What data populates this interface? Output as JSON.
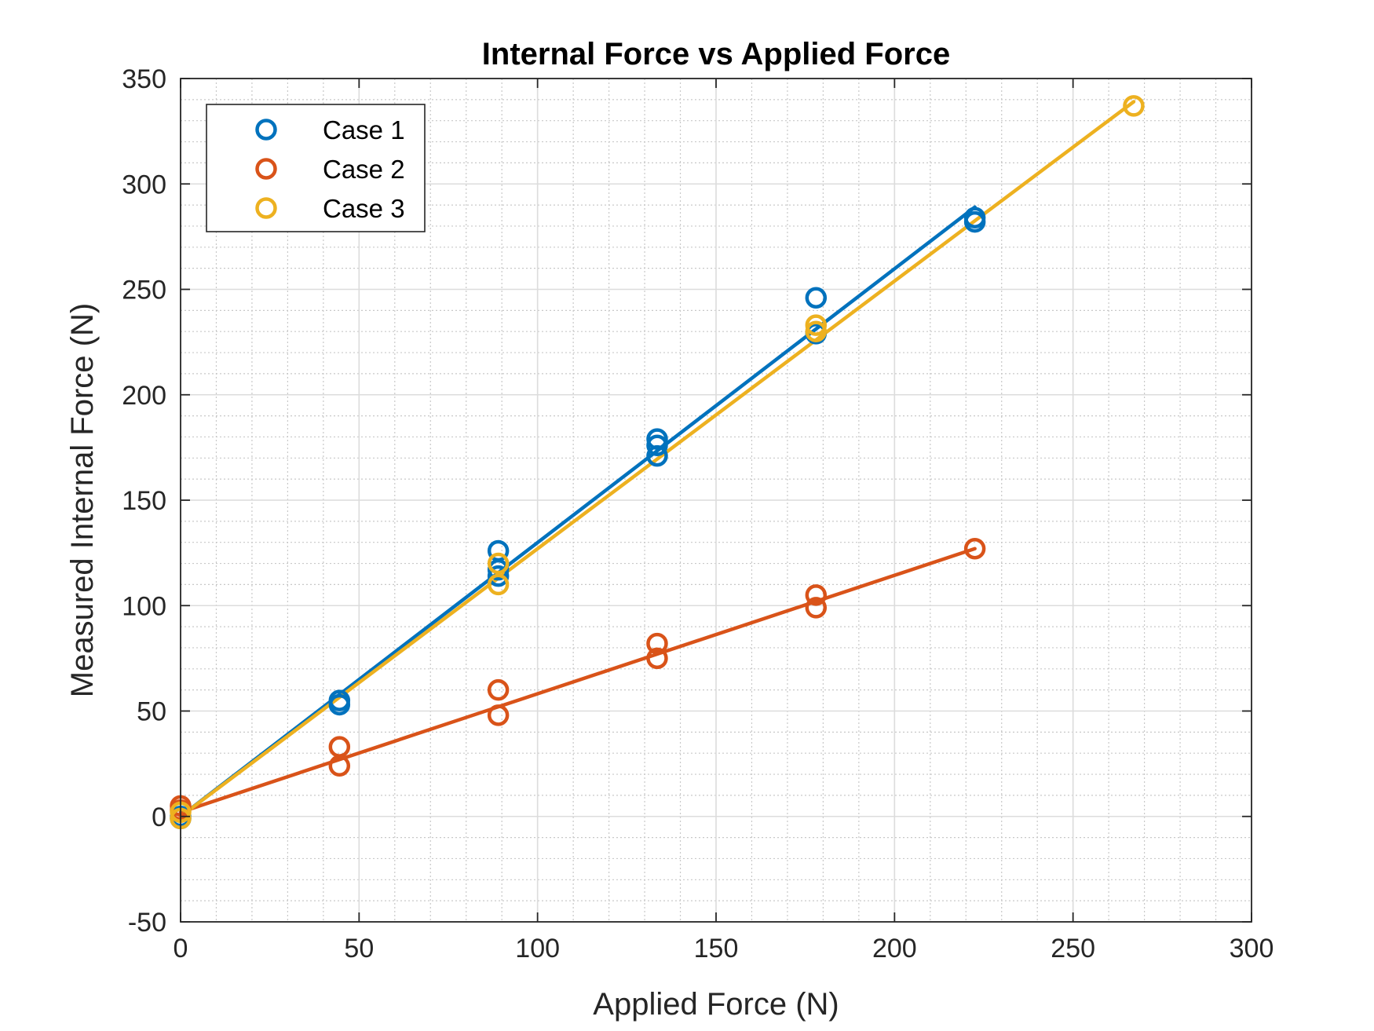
{
  "chart_data": {
    "type": "scatter",
    "title": "Internal Force vs Applied Force",
    "xlabel": "Applied Force (N)",
    "ylabel": "Measured Internal Force (N)",
    "xlim": [
      0,
      300
    ],
    "ylim": [
      -50,
      350
    ],
    "xticks": [
      0,
      50,
      100,
      150,
      200,
      250,
      300
    ],
    "yticks": [
      -50,
      0,
      50,
      100,
      150,
      200,
      250,
      300,
      350
    ],
    "grid": true,
    "minor_grid": true,
    "legend_position": "top-left",
    "series": [
      {
        "name": "Case 1",
        "color": "#0072BD",
        "marker": "open-circle",
        "x": [
          0,
          0,
          44.5,
          44.5,
          89,
          89,
          89,
          133.5,
          133.5,
          133.5,
          178,
          178,
          222.5,
          222.5
        ],
        "y": [
          0,
          -1,
          55,
          53,
          126,
          117,
          114,
          179,
          176,
          171,
          246,
          229,
          284,
          282
        ],
        "fit_line": {
          "x": [
            0,
            222.5
          ],
          "y": [
            0,
            289
          ]
        }
      },
      {
        "name": "Case 2",
        "color": "#D95319",
        "marker": "open-circle",
        "x": [
          0,
          0,
          44.5,
          44.5,
          89,
          89,
          133.5,
          133.5,
          178,
          178,
          222.5
        ],
        "y": [
          5,
          3,
          33,
          24,
          60,
          48,
          82,
          75,
          105,
          99,
          127
        ],
        "fit_line": {
          "x": [
            0,
            222.5
          ],
          "y": [
            2,
            127
          ]
        }
      },
      {
        "name": "Case 3",
        "color": "#EDB120",
        "marker": "open-circle",
        "x": [
          0,
          0,
          89,
          89,
          178,
          178,
          267
        ],
        "y": [
          2,
          -1,
          120,
          110,
          233,
          230,
          337
        ],
        "fit_line": {
          "x": [
            0,
            267
          ],
          "y": [
            0,
            339
          ]
        }
      }
    ]
  }
}
